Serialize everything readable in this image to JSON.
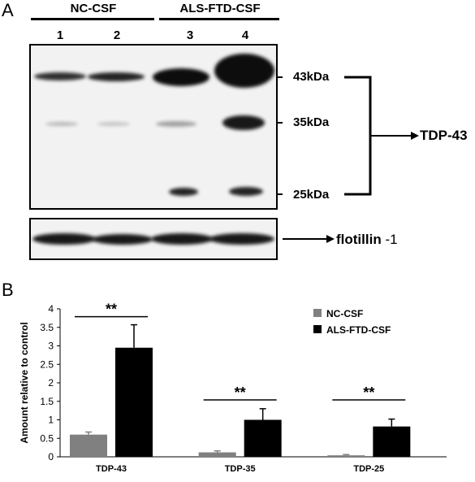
{
  "panel_a": {
    "letter": "A",
    "groups": [
      {
        "label": "NC-CSF"
      },
      {
        "label": "ALS-FTD-CSF"
      }
    ],
    "lanes": [
      "1",
      "2",
      "3",
      "4"
    ],
    "markers": [
      "43kDa",
      "35kDa",
      "25kDa"
    ],
    "target_label": "TDP-43",
    "loading_label": "flotillin",
    "loading_suffix": "-1"
  },
  "panel_b": {
    "letter": "B"
  },
  "chart_data": {
    "type": "bar",
    "categories": [
      "TDP-43",
      "TDP-35",
      "TDP-25"
    ],
    "ylabel": "Amount relative to control",
    "xlabel": "",
    "ylim": [
      0,
      4
    ],
    "yticks": [
      "0",
      "0.5",
      "1",
      "1.5",
      "2",
      "2.5",
      "3",
      "3.5",
      "4"
    ],
    "grid": false,
    "legend_position": "top-right",
    "series": [
      {
        "name": "NC-CSF",
        "color": "#808080",
        "values": [
          0.6,
          0.12,
          0.04
        ],
        "errors": [
          0.07,
          0.04,
          0.02
        ]
      },
      {
        "name": "ALS-FTD-CSF",
        "color": "#000000",
        "values": [
          2.95,
          1.0,
          0.82
        ],
        "errors": [
          0.62,
          0.3,
          0.2
        ]
      }
    ],
    "annotations": [
      "**",
      "**",
      "**"
    ]
  }
}
